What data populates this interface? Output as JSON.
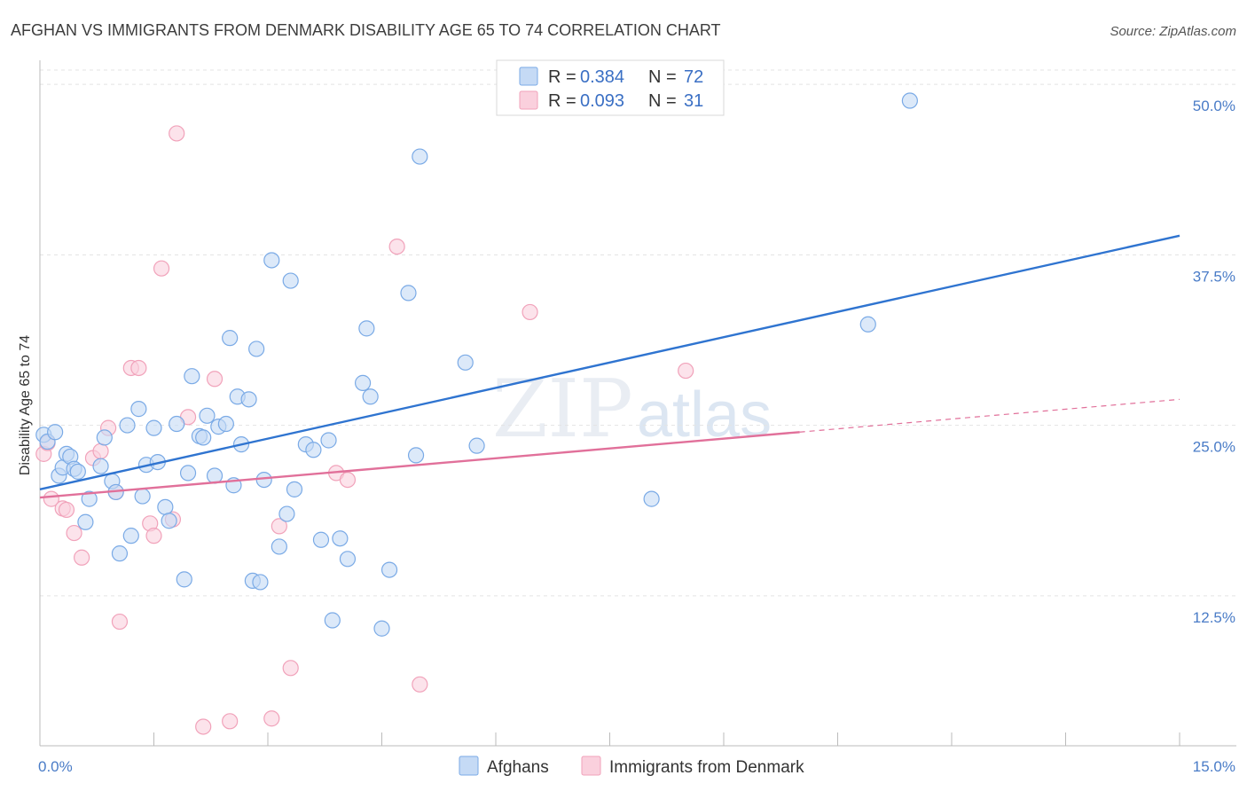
{
  "chart_data": {
    "type": "scatter",
    "title": "AFGHAN VS IMMIGRANTS FROM DENMARK DISABILITY AGE 65 TO 74 CORRELATION CHART",
    "source": "Source: ZipAtlas.com",
    "xlabel": "",
    "ylabel": "Disability Age 65 to 74",
    "xlim": [
      0,
      15
    ],
    "ylim": [
      1.5,
      51.5
    ],
    "x_tick_labels": [
      "0.0%",
      "15.0%"
    ],
    "y_ticks": [
      12.5,
      25.0,
      37.5,
      50.0
    ],
    "y_tick_labels": [
      "12.5%",
      "25.0%",
      "37.5%",
      "50.0%"
    ],
    "watermark": {
      "zip": "ZIP",
      "atlas": "atlas"
    },
    "legend": {
      "entries": [
        {
          "r_label": "R =",
          "r_value": "0.384",
          "n_label": "N =",
          "n_value": "72"
        },
        {
          "r_label": "R =",
          "r_value": "0.093",
          "n_label": "N =",
          "n_value": "31"
        }
      ]
    },
    "series": [
      {
        "name": "Afghans",
        "color": "#7aaae6",
        "fill": "#c5daf5",
        "line_color": "#2f74d0",
        "trend": {
          "x0": 0.0,
          "y0": 20.3,
          "x1": 15.0,
          "y1": 38.9
        },
        "points": [
          [
            0.05,
            24.3
          ],
          [
            0.1,
            23.8
          ],
          [
            0.2,
            24.5
          ],
          [
            0.25,
            21.3
          ],
          [
            0.3,
            21.9
          ],
          [
            0.35,
            22.9
          ],
          [
            0.4,
            22.7
          ],
          [
            0.45,
            21.8
          ],
          [
            0.5,
            21.6
          ],
          [
            0.6,
            17.9
          ],
          [
            0.65,
            19.6
          ],
          [
            0.8,
            22.0
          ],
          [
            0.85,
            24.1
          ],
          [
            0.95,
            20.9
          ],
          [
            1.0,
            20.1
          ],
          [
            1.05,
            15.6
          ],
          [
            1.15,
            25.0
          ],
          [
            1.2,
            16.9
          ],
          [
            1.3,
            26.2
          ],
          [
            1.35,
            19.8
          ],
          [
            1.4,
            22.1
          ],
          [
            1.5,
            24.8
          ],
          [
            1.55,
            22.3
          ],
          [
            1.65,
            19.0
          ],
          [
            1.7,
            18.0
          ],
          [
            1.8,
            25.1
          ],
          [
            1.9,
            13.7
          ],
          [
            1.95,
            21.5
          ],
          [
            2.0,
            28.6
          ],
          [
            2.1,
            24.2
          ],
          [
            2.15,
            24.1
          ],
          [
            2.2,
            25.7
          ],
          [
            2.3,
            21.3
          ],
          [
            2.35,
            24.9
          ],
          [
            2.45,
            25.1
          ],
          [
            2.5,
            31.4
          ],
          [
            2.55,
            20.6
          ],
          [
            2.6,
            27.1
          ],
          [
            2.65,
            23.6
          ],
          [
            2.75,
            26.9
          ],
          [
            2.8,
            13.6
          ],
          [
            2.85,
            30.6
          ],
          [
            2.9,
            13.5
          ],
          [
            2.95,
            21.0
          ],
          [
            3.05,
            37.1
          ],
          [
            3.15,
            16.1
          ],
          [
            3.25,
            18.5
          ],
          [
            3.3,
            35.6
          ],
          [
            3.35,
            20.3
          ],
          [
            3.5,
            23.6
          ],
          [
            3.6,
            23.2
          ],
          [
            3.7,
            16.6
          ],
          [
            3.8,
            23.9
          ],
          [
            3.85,
            10.7
          ],
          [
            3.95,
            16.7
          ],
          [
            4.05,
            15.2
          ],
          [
            4.25,
            28.1
          ],
          [
            4.3,
            32.1
          ],
          [
            4.35,
            27.1
          ],
          [
            4.5,
            10.1
          ],
          [
            4.6,
            14.4
          ],
          [
            4.85,
            34.7
          ],
          [
            4.95,
            22.8
          ],
          [
            5.0,
            44.7
          ],
          [
            5.6,
            29.6
          ],
          [
            5.75,
            23.5
          ],
          [
            8.05,
            19.6
          ],
          [
            10.9,
            32.4
          ],
          [
            11.45,
            48.8
          ]
        ]
      },
      {
        "name": "Immigrants from Denmark",
        "color": "#f1a2ba",
        "fill": "#fad0dd",
        "line_color": "#e1709a",
        "trend": {
          "x0": 0.0,
          "y0": 19.7,
          "x1": 10.0,
          "y1": 24.5
        },
        "trend_dashed": {
          "x0": 10.0,
          "y0": 24.5,
          "x1": 15.0,
          "y1": 26.9
        },
        "points": [
          [
            0.05,
            22.9
          ],
          [
            0.1,
            23.7
          ],
          [
            0.15,
            19.6
          ],
          [
            0.3,
            18.9
          ],
          [
            0.35,
            18.8
          ],
          [
            0.45,
            17.1
          ],
          [
            0.55,
            15.3
          ],
          [
            0.7,
            22.6
          ],
          [
            0.8,
            23.1
          ],
          [
            0.9,
            24.8
          ],
          [
            1.0,
            20.1
          ],
          [
            1.05,
            10.6
          ],
          [
            1.2,
            29.2
          ],
          [
            1.3,
            29.2
          ],
          [
            1.45,
            17.8
          ],
          [
            1.5,
            16.9
          ],
          [
            1.6,
            36.5
          ],
          [
            1.75,
            18.1
          ],
          [
            1.8,
            46.4
          ],
          [
            1.95,
            25.6
          ],
          [
            2.15,
            2.9
          ],
          [
            2.3,
            28.4
          ],
          [
            2.5,
            3.3
          ],
          [
            3.05,
            3.5
          ],
          [
            3.15,
            17.6
          ],
          [
            3.3,
            7.2
          ],
          [
            3.9,
            21.5
          ],
          [
            4.05,
            21.0
          ],
          [
            4.7,
            38.1
          ],
          [
            5.0,
            6.0
          ],
          [
            6.45,
            33.3
          ],
          [
            8.5,
            29.0
          ]
        ]
      }
    ]
  }
}
